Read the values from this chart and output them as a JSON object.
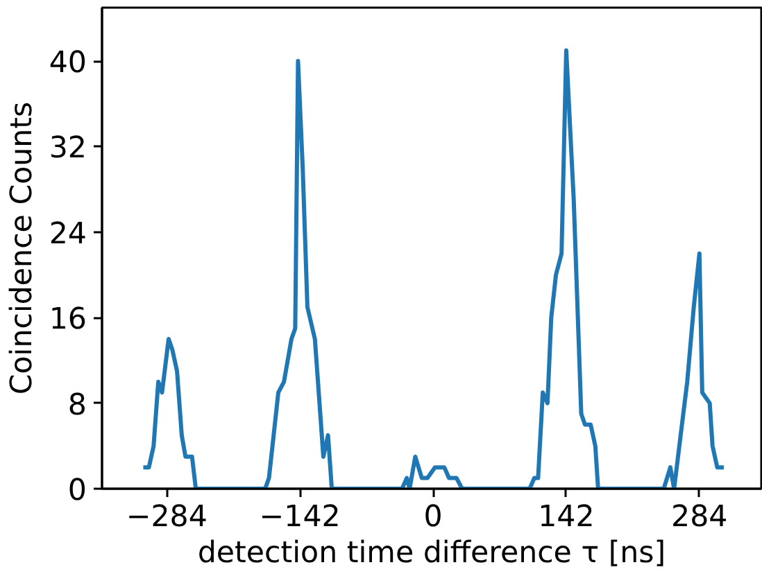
{
  "chart_data": {
    "type": "line",
    "xlabel": "detection time difference τ [ns]",
    "ylabel": "Coincidence Counts",
    "x": [
      -309,
      -303,
      -298,
      -293,
      -289,
      -282,
      -278,
      -273,
      -268,
      -264,
      -257,
      -253,
      -179,
      -175,
      -165,
      -159,
      -151,
      -147,
      -144,
      -139,
      -134,
      -126,
      -117,
      -112,
      -108,
      -33,
      -28,
      -25,
      -19,
      -12,
      -6,
      2,
      12,
      17,
      25,
      31,
      103,
      108,
      112,
      117,
      122,
      126,
      131,
      137,
      142,
      150,
      158,
      162,
      168,
      173,
      176,
      246,
      253,
      257,
      264,
      271,
      278,
      284,
      287,
      295,
      298,
      303,
      310
    ],
    "series": [
      {
        "color": "#1f77b4",
        "values": [
          2,
          2,
          4,
          10,
          9,
          14,
          13,
          11,
          5,
          3,
          3,
          0,
          0,
          1,
          9,
          10,
          14,
          15,
          40,
          30,
          17,
          14,
          3,
          5,
          0,
          0,
          1,
          0,
          3,
          1,
          1,
          2,
          2,
          1,
          1,
          0,
          0,
          1,
          1,
          9,
          8,
          16,
          20,
          22,
          41,
          27,
          7,
          6,
          6,
          4,
          0,
          0,
          2,
          0,
          5,
          10,
          17,
          22,
          9,
          8,
          4,
          2,
          2
        ]
      }
    ],
    "xlim": [
      -353,
      350
    ],
    "ylim": [
      0,
      45
    ],
    "xticks": [
      {
        "value": -284,
        "label": "−284"
      },
      {
        "value": -142,
        "label": "−142"
      },
      0,
      142,
      284
    ],
    "yticks": [
      0,
      8,
      16,
      24,
      32,
      40
    ],
    "grid": false,
    "marker": "none",
    "line_style": "solid"
  }
}
